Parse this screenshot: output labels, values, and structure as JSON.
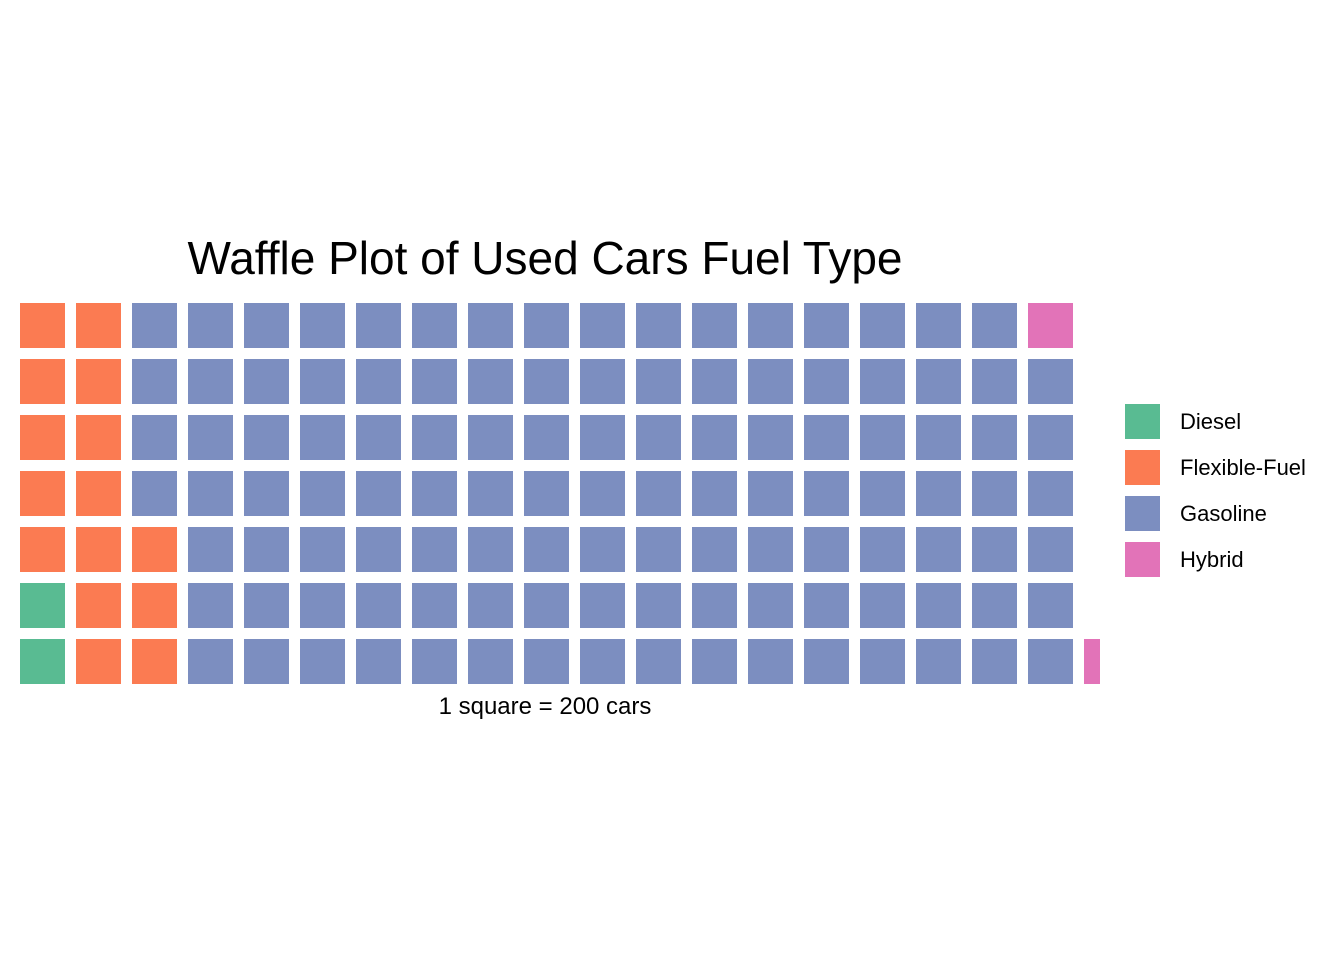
{
  "chart_data": {
    "type": "waffle",
    "title": "Waffle Plot of Used Cars Fuel Type",
    "caption": "1 square = 200 cars",
    "rows": 7,
    "fill_order": "column-major, bottom-to-top",
    "categories": [
      "Diesel",
      "Flexible-Fuel",
      "Gasoline",
      "Hybrid"
    ],
    "squares": [
      2,
      15,
      115,
      2
    ],
    "colors": {
      "Diesel": "#59BB92",
      "Flexible-Fuel": "#FB7B52",
      "Gasoline": "#7C8EC0",
      "Hybrid": "#E273B8"
    },
    "legend_position": "right"
  }
}
